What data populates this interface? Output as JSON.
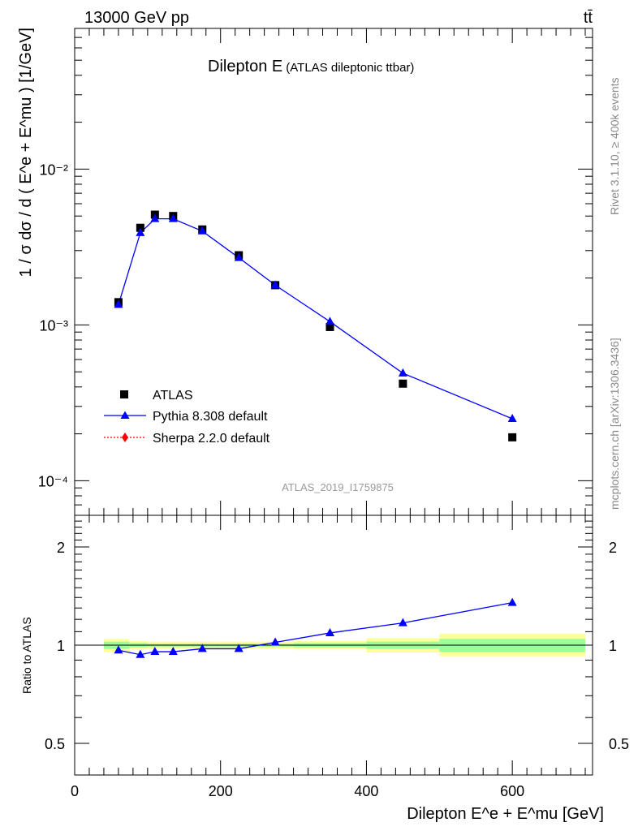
{
  "header": {
    "energy": "13000 GeV pp",
    "process": "tt̄",
    "title": "Dilepton E",
    "subtitle": "(ATLAS dileptonic ttbar)",
    "analysis_id": "ATLAS_2019_I1759875",
    "side_rivet": "Rivet 3.1.10, ≥ 400k events",
    "side_mcplots": "mcplots.cern.ch [arXiv:1306.3436]"
  },
  "colors": {
    "data": "#000000",
    "pythia": "#0000ff",
    "sherpa": "#ff0000",
    "band_inner": "#99ff99",
    "band_outer": "#ffff99"
  },
  "chart_data": [
    {
      "type": "scatter",
      "ylabel": "1 / σ dσ / d ( E^e + E^mu ) [1/GeV]",
      "yscale": "log",
      "ylim": [
        6e-05,
        0.08
      ],
      "xlim": [
        0,
        710
      ],
      "y_ticks": [
        {
          "value": 0.0001,
          "label": "10⁻⁴"
        },
        {
          "value": 0.001,
          "label": "10⁻³"
        },
        {
          "value": 0.01,
          "label": "10⁻²"
        }
      ],
      "legend_position": "bottom-left",
      "series": [
        {
          "name": "ATLAS",
          "marker": "square",
          "x": [
            60,
            90,
            110,
            135,
            175,
            225,
            275,
            350,
            450,
            600
          ],
          "y": [
            0.0014,
            0.0042,
            0.0051,
            0.005,
            0.0041,
            0.0028,
            0.0018,
            0.00097,
            0.00042,
            0.00019
          ]
        },
        {
          "name": "Pythia 8.308 default",
          "marker": "triangle",
          "x": [
            60,
            90,
            110,
            135,
            175,
            225,
            275,
            350,
            450,
            600
          ],
          "y": [
            0.00135,
            0.0039,
            0.0048,
            0.0048,
            0.004,
            0.0027,
            0.0018,
            0.00105,
            0.00049,
            0.00025
          ]
        },
        {
          "name": "Sherpa 2.2.0 default",
          "marker": "diamond",
          "x": [],
          "y": []
        }
      ]
    },
    {
      "type": "line",
      "ylabel": "Ratio to ATLAS",
      "xlabel": "Dilepton E^e + E^mu [GeV]",
      "yscale": "log",
      "ylim": [
        0.4,
        2.5
      ],
      "xlim": [
        0,
        710
      ],
      "x_ticks": [
        0,
        200,
        400,
        600
      ],
      "y_ticks": [
        0.5,
        1,
        2
      ],
      "uncertainty_bands": [
        {
          "x_low": 40,
          "x_high": 75,
          "inner": [
            0.975,
            1.025
          ],
          "outer": [
            0.955,
            1.045
          ]
        },
        {
          "x_low": 75,
          "x_high": 100,
          "inner": [
            0.985,
            1.015
          ],
          "outer": [
            0.97,
            1.03
          ]
        },
        {
          "x_low": 100,
          "x_high": 120,
          "inner": [
            0.99,
            1.01
          ],
          "outer": [
            0.975,
            1.025
          ]
        },
        {
          "x_low": 120,
          "x_high": 150,
          "inner": [
            0.99,
            1.01
          ],
          "outer": [
            0.975,
            1.025
          ]
        },
        {
          "x_low": 150,
          "x_high": 200,
          "inner": [
            0.99,
            1.01
          ],
          "outer": [
            0.975,
            1.025
          ]
        },
        {
          "x_low": 200,
          "x_high": 250,
          "inner": [
            0.99,
            1.01
          ],
          "outer": [
            0.975,
            1.025
          ]
        },
        {
          "x_low": 250,
          "x_high": 300,
          "inner": [
            0.99,
            1.01
          ],
          "outer": [
            0.975,
            1.025
          ]
        },
        {
          "x_low": 300,
          "x_high": 400,
          "inner": [
            0.985,
            1.015
          ],
          "outer": [
            0.97,
            1.03
          ]
        },
        {
          "x_low": 400,
          "x_high": 500,
          "inner": [
            0.975,
            1.025
          ],
          "outer": [
            0.95,
            1.05
          ]
        },
        {
          "x_low": 500,
          "x_high": 700,
          "inner": [
            0.955,
            1.045
          ],
          "outer": [
            0.925,
            1.085
          ]
        }
      ],
      "series": [
        {
          "name": "Pythia 8.308 default",
          "marker": "triangle",
          "x": [
            60,
            90,
            110,
            135,
            175,
            225,
            275,
            350,
            450,
            600
          ],
          "y": [
            0.965,
            0.935,
            0.955,
            0.955,
            0.975,
            0.975,
            1.02,
            1.09,
            1.17,
            1.35
          ]
        }
      ]
    }
  ]
}
